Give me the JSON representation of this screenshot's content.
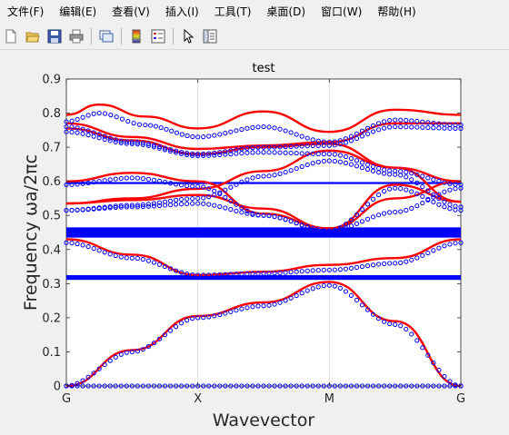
{
  "menu": [
    "文件(F)",
    "编辑(E)",
    "查看(V)",
    "插入(I)",
    "工具(T)",
    "桌面(D)",
    "窗口(W)",
    "帮助(H)"
  ],
  "toolbar": {
    "buttons": [
      "new-file-icon",
      "open-folder-icon",
      "save-icon",
      "print-icon",
      "link-figure-icon",
      "colorbar-icon",
      "legend-icon",
      "pointer-icon",
      "property-inspector-icon"
    ]
  },
  "colors": {
    "red": "#ff0000",
    "blue": "#0000ff",
    "axes_bg": "#ffffff",
    "grid": "#dddddd"
  },
  "chart_data": {
    "type": "line",
    "title": "test",
    "xlabel": "Wavevector",
    "ylabel": "Frequency ωa/2πc",
    "x_ticks": [
      "G",
      "X",
      "M",
      "G"
    ],
    "x_tick_positions": [
      0,
      1,
      2,
      3
    ],
    "xlim": [
      0,
      3
    ],
    "ylim": [
      0,
      0.9
    ],
    "y_ticks": [
      "0",
      "0.1",
      "0.2",
      "0.3",
      "0.4",
      "0.5",
      "0.6",
      "0.7",
      "0.8",
      "0.9"
    ],
    "grid": "x-only",
    "series": [
      {
        "style": "red-line",
        "x": [
          0,
          0.5,
          1,
          1.5,
          2,
          2.5,
          3
        ],
        "y": [
          0,
          0.105,
          0.205,
          0.245,
          0.305,
          0.19,
          0
        ]
      },
      {
        "style": "red-line",
        "x": [
          0,
          0.5,
          1,
          1.5,
          2,
          2.5,
          3
        ],
        "y": [
          0.43,
          0.385,
          0.325,
          0.335,
          0.355,
          0.375,
          0.43
        ]
      },
      {
        "style": "red-line",
        "x": [
          0,
          0.5,
          1,
          1.5,
          2,
          2.5,
          3
        ],
        "y": [
          0.535,
          0.545,
          0.56,
          0.52,
          0.462,
          0.59,
          0.54
        ]
      },
      {
        "style": "red-line",
        "x": [
          0,
          0.5,
          1,
          1.5,
          2,
          2.5,
          3
        ],
        "y": [
          0.535,
          0.55,
          0.578,
          0.63,
          0.69,
          0.64,
          0.54
        ]
      },
      {
        "style": "red-line",
        "x": [
          0,
          0.5,
          1,
          1.5,
          2,
          2.5,
          3
        ],
        "y": [
          0.6,
          0.625,
          0.6,
          0.505,
          0.462,
          0.55,
          0.6
        ]
      },
      {
        "style": "red-line",
        "x": [
          0,
          0.5,
          1,
          1.5,
          2,
          2.5,
          3
        ],
        "y": [
          0.755,
          0.72,
          0.68,
          0.7,
          0.71,
          0.64,
          0.6
        ]
      },
      {
        "style": "red-line",
        "x": [
          0,
          0.5,
          1,
          1.5,
          2,
          2.5,
          3
        ],
        "y": [
          0.77,
          0.73,
          0.695,
          0.705,
          0.715,
          0.77,
          0.77
        ]
      },
      {
        "style": "red-line",
        "x": [
          0,
          0.25,
          0.6,
          1,
          1.5,
          2,
          2.5,
          3
        ],
        "y": [
          0.795,
          0.825,
          0.79,
          0.755,
          0.805,
          0.745,
          0.81,
          0.795
        ]
      },
      {
        "style": "blue-circles",
        "x": [
          0,
          0.5,
          1,
          1.5,
          2,
          2.5,
          3
        ],
        "y": [
          0,
          0.1,
          0.2,
          0.235,
          0.295,
          0.18,
          0
        ]
      },
      {
        "style": "blue-circles",
        "x": [
          0,
          0.5,
          1,
          1.5,
          2,
          2.5,
          3
        ],
        "y": [
          0.42,
          0.375,
          0.325,
          0.33,
          0.34,
          0.36,
          0.42
        ]
      },
      {
        "style": "blue-circles",
        "x": [
          0,
          0.5,
          1,
          1.5,
          2,
          2.5,
          3
        ],
        "y": [
          0.515,
          0.525,
          0.535,
          0.5,
          0.455,
          0.58,
          0.515
        ]
      },
      {
        "style": "blue-circles",
        "x": [
          0,
          0.5,
          1,
          1.5,
          2,
          2.5,
          3
        ],
        "y": [
          0.515,
          0.53,
          0.55,
          0.615,
          0.66,
          0.62,
          0.525
        ]
      },
      {
        "style": "blue-circles",
        "x": [
          0,
          0.5,
          1,
          1.5,
          2,
          2.5,
          3
        ],
        "y": [
          0.59,
          0.61,
          0.585,
          0.5,
          0.455,
          0.51,
          0.58
        ]
      },
      {
        "style": "blue-circles",
        "x": [
          0,
          0.5,
          1,
          1.5,
          2,
          2.5,
          3
        ],
        "y": [
          0.745,
          0.71,
          0.675,
          0.685,
          0.68,
          0.63,
          0.59
        ]
      },
      {
        "style": "blue-circles",
        "x": [
          0,
          0.5,
          1,
          1.5,
          2,
          2.5,
          3
        ],
        "y": [
          0.76,
          0.715,
          0.68,
          0.7,
          0.705,
          0.76,
          0.755
        ]
      },
      {
        "style": "blue-circles",
        "x": [
          0,
          0.25,
          0.6,
          1,
          1.5,
          2,
          2.5,
          3
        ],
        "y": [
          0.775,
          0.8,
          0.765,
          0.73,
          0.76,
          0.715,
          0.78,
          0.765
        ]
      },
      {
        "style": "blue-circles",
        "x": [
          0,
          3
        ],
        "y": [
          0,
          0
        ]
      }
    ],
    "horizontal_bands": [
      {
        "y": 0.45,
        "thickness": 0.03
      },
      {
        "y": 0.318,
        "thickness": 0.014
      },
      {
        "y": 0.595,
        "thickness": 0.006
      }
    ]
  }
}
